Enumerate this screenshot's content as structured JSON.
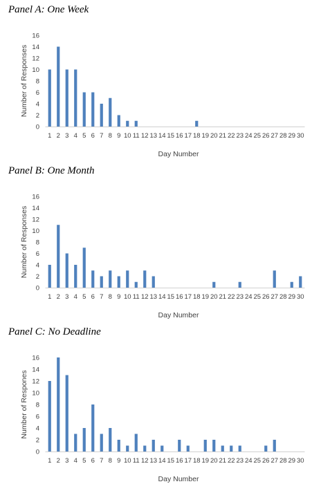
{
  "panels": [
    {
      "title": "Panel A: One Week"
    },
    {
      "title": "Panel B: One Month"
    },
    {
      "title": "Panel C: No Deadline"
    }
  ],
  "chart_data": [
    {
      "type": "bar",
      "title": "Panel A: One Week",
      "xlabel": "Day Number",
      "ylabel": "Number of Responses",
      "ylim": [
        0,
        16
      ],
      "yticks": [
        0,
        2,
        4,
        6,
        8,
        10,
        12,
        14,
        16
      ],
      "categories": [
        "1",
        "2",
        "3",
        "4",
        "5",
        "6",
        "7",
        "8",
        "9",
        "10",
        "11",
        "12",
        "13",
        "14",
        "15",
        "16",
        "17",
        "18",
        "19",
        "20",
        "21",
        "22",
        "23",
        "24",
        "25",
        "26",
        "27",
        "28",
        "29",
        "30"
      ],
      "values": [
        10,
        14,
        10,
        10,
        6,
        6,
        4,
        5,
        2,
        1,
        1,
        0,
        0,
        0,
        0,
        0,
        0,
        1,
        0,
        0,
        0,
        0,
        0,
        0,
        0,
        0,
        0,
        0,
        0,
        0
      ],
      "bar_color": "#4f81bd",
      "grid": false
    },
    {
      "type": "bar",
      "title": "Panel B: One Month",
      "xlabel": "Day Number",
      "ylabel": "Number of Responses",
      "ylim": [
        0,
        16
      ],
      "yticks": [
        0,
        2,
        4,
        6,
        8,
        10,
        12,
        14,
        16
      ],
      "categories": [
        "1",
        "2",
        "3",
        "4",
        "5",
        "6",
        "7",
        "8",
        "9",
        "10",
        "11",
        "12",
        "13",
        "14",
        "15",
        "16",
        "17",
        "18",
        "19",
        "20",
        "21",
        "22",
        "23",
        "24",
        "25",
        "26",
        "27",
        "28",
        "29",
        "30"
      ],
      "values": [
        4,
        11,
        6,
        4,
        7,
        3,
        2,
        3,
        2,
        3,
        1,
        3,
        2,
        0,
        0,
        0,
        0,
        0,
        0,
        1,
        0,
        0,
        1,
        0,
        0,
        0,
        3,
        0,
        1,
        2
      ],
      "bar_color": "#4f81bd",
      "grid": false
    },
    {
      "type": "bar",
      "title": "Panel C: No Deadline",
      "xlabel": "Day Number",
      "ylabel": "Number of Respones",
      "ylim": [
        0,
        16
      ],
      "yticks": [
        0,
        2,
        4,
        6,
        8,
        10,
        12,
        14,
        16
      ],
      "categories": [
        "1",
        "2",
        "3",
        "4",
        "5",
        "6",
        "7",
        "8",
        "9",
        "10",
        "11",
        "12",
        "13",
        "14",
        "15",
        "16",
        "17",
        "18",
        "19",
        "20",
        "21",
        "22",
        "23",
        "24",
        "25",
        "26",
        "27",
        "28",
        "29",
        "30"
      ],
      "values": [
        12,
        16,
        13,
        3,
        4,
        8,
        3,
        4,
        2,
        1,
        3,
        1,
        2,
        1,
        0,
        2,
        1,
        0,
        2,
        2,
        1,
        1,
        1,
        0,
        0,
        1,
        2,
        0,
        0,
        0
      ],
      "bar_color": "#4f81bd",
      "grid": false
    }
  ]
}
